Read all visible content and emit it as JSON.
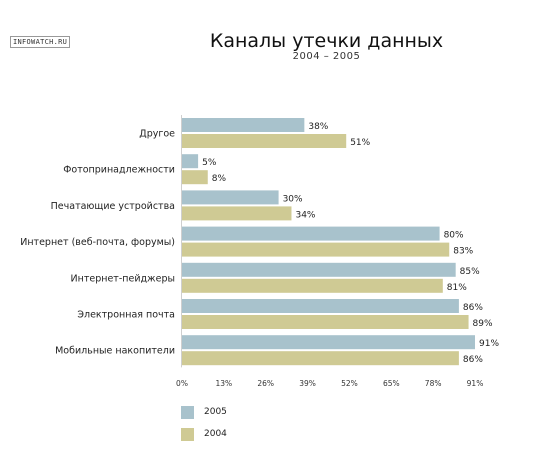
{
  "watermark": "INFOWATCH.RU",
  "chart_data": {
    "type": "bar",
    "orientation": "horizontal",
    "title": "Каналы утечки данных",
    "subtitle": "2004 – 2005",
    "categories": [
      "Другое",
      "Фотопринадлежности",
      "Печатающие устройства",
      "Интернет (веб-почта, форумы)",
      "Интернет-пейджеры",
      "Электронная почта",
      "Мобильные накопители"
    ],
    "series": [
      {
        "name": "2005",
        "color": "#a8c2cc",
        "values": [
          38,
          5,
          30,
          80,
          85,
          86,
          91
        ]
      },
      {
        "name": "2004",
        "color": "#cfca94",
        "values": [
          51,
          8,
          34,
          83,
          81,
          89,
          86
        ]
      }
    ],
    "value_suffix": "%",
    "xlim": [
      0,
      91
    ],
    "xticks": [
      "0%",
      "13%",
      "26%",
      "39%",
      "52%",
      "65%",
      "78%",
      "91%"
    ],
    "grid": false,
    "legend_position": "bottom-left"
  }
}
